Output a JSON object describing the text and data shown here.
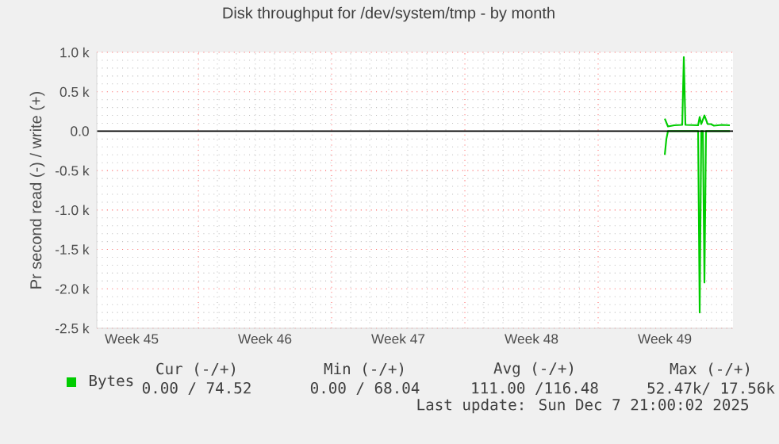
{
  "chart_data": {
    "type": "line",
    "title": "Disk throughput for /dev/system/tmp - by month",
    "ylabel": "Pr second read (-) / write (+)",
    "xlim": [
      "2025-11-04T16:00",
      "2025-12-08T02:00"
    ],
    "xticks": [
      {
        "value": "2025-11-06T12:00",
        "label": "Week 45"
      },
      {
        "value": "2025-11-13T12:00",
        "label": "Week 46"
      },
      {
        "value": "2025-11-20T12:00",
        "label": "Week 47"
      },
      {
        "value": "2025-11-27T12:00",
        "label": "Week 48"
      },
      {
        "value": "2025-12-04T12:00",
        "label": "Week 49"
      },
      {
        "value": "2025-11-10",
        "label": null
      },
      {
        "value": "2025-11-17",
        "label": null
      },
      {
        "value": "2025-11-24",
        "label": null
      },
      {
        "value": "2025-12-01",
        "label": null
      }
    ],
    "ylim": [
      -2500,
      1000
    ],
    "yticks": [
      {
        "value": -2500,
        "label": "-2.5 k"
      },
      {
        "value": -2000,
        "label": "-2.0 k"
      },
      {
        "value": -1500,
        "label": "-1.5 k"
      },
      {
        "value": -1000,
        "label": "-1.0 k"
      },
      {
        "value": -500,
        "label": "-0.5 k"
      },
      {
        "value": 0,
        "label": "0.0"
      },
      {
        "value": 500,
        "label": "0.5 k"
      },
      {
        "value": 1000,
        "label": "1.0 k"
      }
    ],
    "grid": true,
    "legend": "bottom left",
    "ref_lines": [
      {
        "axis": "y",
        "value": 0,
        "color": "#000000"
      }
    ],
    "series": [
      {
        "name": "Bytes",
        "color": "#00cc00",
        "x": [
          "2025-12-04T12:00",
          "2025-12-04T16:00",
          "2025-12-05T00:00",
          "2025-12-05T10:00",
          "2025-12-05T12:00",
          "2025-12-05T14:00",
          "2025-12-06T06:00",
          "2025-12-06T08:00",
          "2025-12-06T10:00",
          "2025-12-06T14:00",
          "2025-12-06T18:00",
          "2025-12-06T22:00",
          "2025-12-07T02:00",
          "2025-12-07T12:00",
          "2025-12-07T22:00"
        ],
        "values": [
          160,
          60,
          75,
          80,
          940,
          80,
          75,
          180,
          90,
          200,
          90,
          90,
          70,
          80,
          75
        ]
      },
      {
        "color": "#00cc00",
        "x": [
          "2025-12-04T12:00",
          "2025-12-04T14:00",
          "2025-12-04T16:00",
          "2025-12-06T06:00",
          "2025-12-06T08:00",
          "2025-12-06T10:00",
          "2025-12-06T12:00",
          "2025-12-06T14:00",
          "2025-12-06T16:00",
          "2025-12-07T22:00"
        ],
        "values": [
          -300,
          -100,
          0,
          0,
          -2300,
          0,
          0,
          -1920,
          0,
          0
        ]
      }
    ],
    "annotations": [
      "Cur (-/+)",
      "Min (-/+)",
      "Avg (-/+)",
      "Max (-/+)",
      "0.00 / 74.52",
      "0.00 / 68.04",
      "111.00 /116.48",
      "52.47k/ 17.56k",
      "Last update: Sun Dec  7 21:00:02 2025"
    ]
  }
}
